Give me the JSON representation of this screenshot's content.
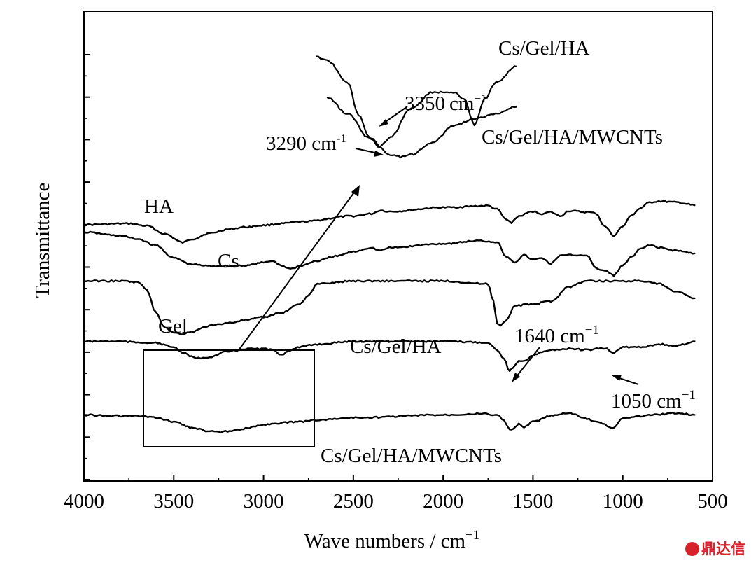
{
  "chart_data": {
    "type": "line",
    "title": "",
    "xlabel": "Wave numbers / cm",
    "xlabel_superscript": "−1",
    "ylabel": "Transmittance",
    "xlim": [
      4000,
      500
    ],
    "x_ticks": [
      4000,
      3500,
      3000,
      2500,
      2000,
      1500,
      1000,
      500
    ],
    "y_tick_labels_shown": false,
    "series": [
      {
        "name": "HA",
        "x": [
          4000,
          3750,
          3650,
          3550,
          3450,
          3400,
          3300,
          3200,
          3100,
          3000,
          2900,
          2800,
          2500,
          2400,
          2350,
          2300,
          2000,
          1750,
          1700,
          1650,
          1620,
          1580,
          1500,
          1450,
          1400,
          1350,
          1300,
          1200,
          1150,
          1100,
          1050,
          1000,
          950,
          900,
          850,
          800,
          700,
          600
        ],
        "y": [
          1.33,
          1.35,
          1.31,
          1.17,
          1.02,
          1.08,
          1.18,
          1.25,
          1.29,
          1.32,
          1.35,
          1.38,
          1.48,
          1.52,
          1.58,
          1.56,
          1.63,
          1.66,
          1.6,
          1.42,
          1.37,
          1.48,
          1.56,
          1.52,
          1.55,
          1.48,
          1.57,
          1.55,
          1.53,
          1.3,
          1.14,
          1.3,
          1.5,
          1.62,
          1.72,
          1.74,
          1.72,
          1.67
        ]
      },
      {
        "name": "Cs",
        "x": [
          4000,
          3800,
          3700,
          3600,
          3500,
          3400,
          3300,
          3200,
          3100,
          3000,
          2950,
          2900,
          2850,
          2800,
          2700,
          2600,
          2500,
          2400,
          2350,
          2300,
          2000,
          1800,
          1700,
          1650,
          1600,
          1550,
          1500,
          1450,
          1400,
          1350,
          1300,
          1200,
          1150,
          1100,
          1050,
          1000,
          950,
          900,
          850,
          800,
          700,
          600
        ],
        "y": [
          1.2,
          1.14,
          1.08,
          0.97,
          0.75,
          0.64,
          0.61,
          0.61,
          0.62,
          0.67,
          0.7,
          0.62,
          0.56,
          0.61,
          0.7,
          0.78,
          0.86,
          0.93,
          0.88,
          0.93,
          1.0,
          1.05,
          1.03,
          0.78,
          0.68,
          0.8,
          0.72,
          0.75,
          0.65,
          0.79,
          0.8,
          0.8,
          0.57,
          0.53,
          0.45,
          0.62,
          0.77,
          0.91,
          0.98,
          0.93,
          0.88,
          0.83
        ]
      },
      {
        "name": "Gel",
        "x": [
          4000,
          3800,
          3700,
          3650,
          3600,
          3550,
          3500,
          3450,
          3400,
          3300,
          3200,
          3100,
          3000,
          2900,
          2800,
          2750,
          2700,
          2500,
          2000,
          1750,
          1720,
          1700,
          1680,
          1650,
          1600,
          1500,
          1400,
          1300,
          1200,
          1000,
          900,
          800,
          700,
          600
        ],
        "y": [
          0.35,
          0.35,
          0.33,
          0.2,
          -0.2,
          -0.45,
          -0.55,
          -0.57,
          -0.53,
          -0.43,
          -0.38,
          -0.33,
          -0.28,
          -0.2,
          -0.05,
          0.1,
          0.3,
          0.35,
          0.35,
          0.3,
          0.0,
          -0.38,
          -0.42,
          -0.33,
          -0.08,
          -0.05,
          0.0,
          0.25,
          0.35,
          0.35,
          0.35,
          0.3,
          0.16,
          0.05
        ]
      },
      {
        "name": "Cs/Gel/HA",
        "x": [
          4000,
          3800,
          3700,
          3650,
          3600,
          3500,
          3450,
          3400,
          3350,
          3300,
          3200,
          3100,
          3000,
          2950,
          2900,
          2850,
          2800,
          2700,
          2500,
          2000,
          1750,
          1700,
          1660,
          1630,
          1610,
          1580,
          1550,
          1500,
          1450,
          1400,
          1300,
          1200,
          1100,
          1050,
          1000,
          900,
          800,
          700,
          600
        ],
        "y": [
          -0.7,
          -0.7,
          -0.72,
          -0.72,
          -0.73,
          -0.8,
          -0.9,
          -0.97,
          -1.0,
          -0.97,
          -0.88,
          -0.83,
          -0.83,
          -0.85,
          -0.93,
          -0.85,
          -0.8,
          -0.75,
          -0.7,
          -0.7,
          -0.72,
          -0.85,
          -1.0,
          -1.22,
          -1.15,
          -1.05,
          -1.05,
          -0.95,
          -0.88,
          -0.85,
          -0.83,
          -0.85,
          -0.82,
          -0.9,
          -0.8,
          -0.8,
          -0.75,
          -0.78,
          -0.7
        ]
      },
      {
        "name": "Cs/Gel/HA/MWCNTs",
        "x": [
          4000,
          3800,
          3700,
          3600,
          3500,
          3400,
          3300,
          3250,
          3200,
          3100,
          3000,
          2900,
          2800,
          2700,
          2500,
          2000,
          1800,
          1700,
          1660,
          1640,
          1620,
          1600,
          1580,
          1550,
          1500,
          1400,
          1300,
          1200,
          1150,
          1100,
          1060,
          1000,
          950,
          900,
          800,
          700,
          600
        ],
        "y": [
          -1.98,
          -2.0,
          -2.0,
          -2.03,
          -2.1,
          -2.2,
          -2.27,
          -2.28,
          -2.27,
          -2.22,
          -2.15,
          -2.12,
          -2.1,
          -2.07,
          -2.03,
          -1.98,
          -1.96,
          -1.98,
          -2.08,
          -2.2,
          -2.25,
          -2.2,
          -2.14,
          -2.2,
          -2.1,
          -2.0,
          -1.95,
          -2.05,
          -2.1,
          -2.15,
          -2.22,
          -2.05,
          -2.02,
          -2.0,
          -1.97,
          -1.95,
          -1.98
        ]
      }
    ],
    "annotations": {
      "peak_1640": {
        "text": "1640 cm",
        "sup": "−1"
      },
      "peak_1050": {
        "text": "1050 cm",
        "sup": "−1"
      }
    },
    "inset": {
      "series": [
        {
          "name": "Cs/Gel/HA",
          "annotation": {
            "text": "3350",
            "unit": "cm",
            "sup": "−1"
          }
        },
        {
          "name": "Cs/Gel/HA/MWCNTs",
          "annotation": {
            "text": "3290 cm",
            "sup": "-1"
          }
        }
      ]
    }
  },
  "watermark": {
    "text": "鼎达信",
    "color": "#d8222b"
  }
}
